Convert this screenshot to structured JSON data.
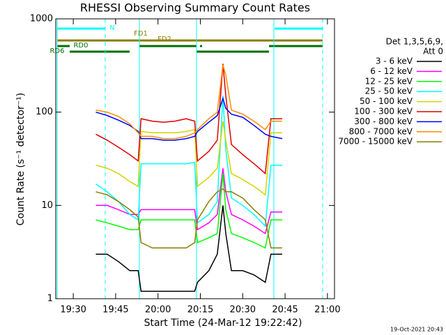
{
  "chart_data": {
    "type": "line",
    "title": "RHESSI Observing Summary Count Rates",
    "x_label": "Start Time (24-Mar-12 19:22:42)",
    "y_label": "Count Rate (s⁻¹ detector⁻¹)",
    "legend_header": [
      "Det 1,3,5,6,9,",
      "Att 0"
    ],
    "timestamp": "19-Oct-2021 20:43",
    "annotations": [
      "N",
      "FD1",
      "FD2",
      "RD0",
      "RD6"
    ],
    "log_y": true,
    "xlim": [
      1163.8,
      1262.5
    ],
    "ylim": [
      1,
      1000
    ],
    "xticks": [
      {
        "value": 1170,
        "label": "19:30"
      },
      {
        "value": 1185,
        "label": "19:45"
      },
      {
        "value": 1200,
        "label": "20:00"
      },
      {
        "value": 1215,
        "label": "20:15"
      },
      {
        "value": 1230,
        "label": "20:30"
      },
      {
        "value": 1245,
        "label": "20:45"
      },
      {
        "value": 1260,
        "label": "21:00"
      }
    ],
    "yticks": [
      1,
      10,
      100,
      1000
    ],
    "x": [
      1178,
      1182,
      1186,
      1190,
      1193,
      1194,
      1198,
      1202,
      1206,
      1210,
      1213,
      1214,
      1218,
      1221,
      1223,
      1224,
      1226,
      1230,
      1234,
      1238,
      1240,
      1244
    ],
    "series": [
      {
        "name": "3 - 6 keV",
        "color": "#000000",
        "values": [
          3,
          3,
          2.5,
          2,
          2,
          1.2,
          1.2,
          1.2,
          1.2,
          1.2,
          1.2,
          1.5,
          2,
          3,
          10,
          5,
          2,
          2,
          1.8,
          1.5,
          3,
          3
        ]
      },
      {
        "name": "6 - 12 keV",
        "color": "#ff00ff",
        "values": [
          10,
          10,
          9,
          8,
          8,
          9,
          9,
          9,
          9,
          9,
          9,
          5.5,
          6.5,
          8,
          25,
          14,
          8,
          7,
          6,
          5,
          8.5,
          8.5
        ]
      },
      {
        "name": "12 - 25 keV",
        "color": "#00ff00",
        "values": [
          7,
          6.5,
          6,
          5.5,
          5.5,
          7,
          7,
          7,
          7,
          7,
          7,
          4,
          4.5,
          5,
          22,
          9,
          5,
          4.5,
          4,
          3.5,
          7,
          7
        ]
      },
      {
        "name": "25 - 50 keV",
        "color": "#00ffff",
        "values": [
          17,
          14,
          11,
          8,
          7,
          28,
          28,
          28,
          28,
          28,
          29,
          6.5,
          8,
          11,
          150,
          40,
          12,
          10,
          8,
          6,
          27,
          27
        ]
      },
      {
        "name": "50 - 100 keV",
        "color": "#d4d400",
        "values": [
          27,
          25,
          22,
          18,
          16,
          62,
          60,
          60,
          60,
          62,
          65,
          16,
          20,
          25,
          80,
          50,
          22,
          19,
          16,
          13,
          60,
          60
        ]
      },
      {
        "name": "100 - 300 keV",
        "color": "#e00000",
        "values": [
          58,
          50,
          42,
          35,
          30,
          85,
          80,
          78,
          80,
          85,
          80,
          30,
          38,
          50,
          330,
          150,
          45,
          35,
          28,
          22,
          85,
          85
        ]
      },
      {
        "name": "300 - 800 keV",
        "color": "#0000ff",
        "values": [
          100,
          92,
          82,
          72,
          62,
          52,
          52,
          50,
          50,
          52,
          55,
          62,
          78,
          92,
          140,
          110,
          95,
          88,
          72,
          58,
          55,
          52
        ]
      },
      {
        "name": "800 - 7000 keV",
        "color": "#ff8c00",
        "values": [
          105,
          100,
          90,
          75,
          60,
          55,
          55,
          52,
          52,
          55,
          60,
          65,
          85,
          100,
          320,
          250,
          105,
          95,
          80,
          65,
          80,
          80
        ]
      },
      {
        "name": "7000 - 15000 keV",
        "color": "#8b7d00",
        "values": [
          14,
          13,
          11,
          9,
          7.5,
          4,
          3.5,
          3.5,
          3.5,
          3.5,
          4,
          7,
          11,
          14,
          15,
          14,
          14,
          12,
          9,
          7,
          3.5,
          3.5
        ]
      }
    ]
  }
}
